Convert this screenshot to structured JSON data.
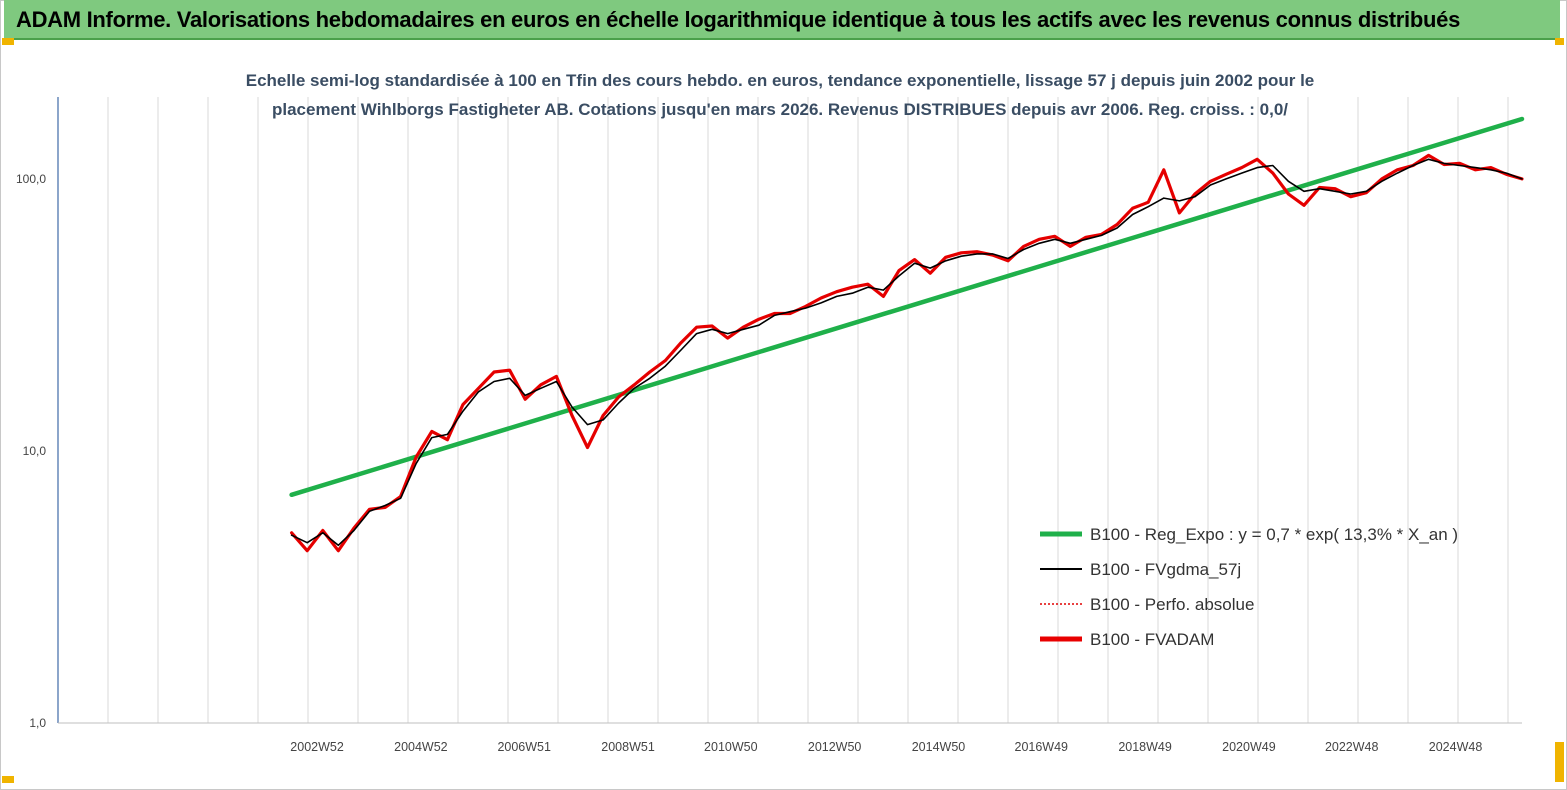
{
  "banner": {
    "title": "ADAM Informe. Valorisations hebdomadaires en euros en échelle logarithmique identique à tous les actifs avec les revenus connus distribués"
  },
  "colors": {
    "banner_bg": "#7fc97f",
    "regression": "#1fb04a",
    "fvgdma": "#000000",
    "perfo": "#e00000",
    "fvadam": "#e80000",
    "corner_marker": "#f0b400"
  },
  "chart_data": {
    "type": "line",
    "title_lines": [
      "Echelle semi-log standardisée à 100 en Tfin des cours hebdo. en euros, tendance exponentielle, lissage 57 j depuis juin 2002 pour le",
      "placement Wihlborgs Fastigheter AB. Cotations jusqu'en mars 2026. Revenus DISTRIBUES depuis avr 2006. Reg. croiss. : 0,0/"
    ],
    "y_scale": "log",
    "ylim": [
      1,
      200
    ],
    "y_ticks": [
      "1,0",
      "10,0",
      "100,0"
    ],
    "xlim": [
      1998.0,
      2026.2
    ],
    "x_ticks": [
      {
        "label": "2002W52",
        "x": 2002.99
      },
      {
        "label": "2004W52",
        "x": 2004.99
      },
      {
        "label": "2006W51",
        "x": 2006.98
      },
      {
        "label": "2008W51",
        "x": 2008.98
      },
      {
        "label": "2010W50",
        "x": 2010.96
      },
      {
        "label": "2012W50",
        "x": 2012.96
      },
      {
        "label": "2014W50",
        "x": 2014.96
      },
      {
        "label": "2016W49",
        "x": 2016.94
      },
      {
        "label": "2018W49",
        "x": 2018.94
      },
      {
        "label": "2020W49",
        "x": 2020.94
      },
      {
        "label": "2022W48",
        "x": 2022.92
      },
      {
        "label": "2024W48",
        "x": 2024.92
      }
    ],
    "grid": "vertical",
    "legend_position": "bottom-right",
    "series": [
      {
        "name": "B100 - Reg_Expo : y = 0,7 * exp( 13,3% *  X_an )",
        "style": "thick-green",
        "x": [
          2002.5,
          2026.2
        ],
        "y": [
          6.9,
          166
        ]
      },
      {
        "name": "B100 - FVgdma_57j",
        "style": "thin-black",
        "x": [
          2002.5,
          2002.8,
          2003.1,
          2003.4,
          2003.7,
          2004.0,
          2004.3,
          2004.6,
          2004.9,
          2005.2,
          2005.5,
          2005.8,
          2006.1,
          2006.4,
          2006.7,
          2007.0,
          2007.3,
          2007.6,
          2007.9,
          2008.2,
          2008.5,
          2008.8,
          2009.1,
          2009.4,
          2009.7,
          2010.0,
          2010.3,
          2010.6,
          2010.9,
          2011.2,
          2011.5,
          2011.8,
          2012.1,
          2012.4,
          2012.7,
          2013.0,
          2013.3,
          2013.6,
          2013.9,
          2014.2,
          2014.5,
          2014.8,
          2015.1,
          2015.4,
          2015.7,
          2016.0,
          2016.3,
          2016.6,
          2016.9,
          2017.2,
          2017.5,
          2017.8,
          2018.1,
          2018.4,
          2018.7,
          2019.0,
          2019.3,
          2019.6,
          2019.9,
          2020.2,
          2020.5,
          2020.8,
          2021.1,
          2021.4,
          2021.7,
          2022.0,
          2022.3,
          2022.6,
          2022.9,
          2023.2,
          2023.5,
          2023.8,
          2024.1,
          2024.4,
          2024.7,
          2025.0,
          2025.3,
          2025.6,
          2025.9,
          2026.2
        ],
        "y": [
          4.9,
          4.6,
          5.0,
          4.5,
          5.1,
          6.0,
          6.3,
          6.7,
          9.0,
          11.2,
          11.5,
          14.0,
          16.5,
          18.0,
          18.5,
          16.0,
          17.0,
          18.0,
          14.5,
          12.5,
          13.0,
          15.0,
          17.0,
          18.5,
          20.5,
          23.5,
          27.0,
          28.0,
          27.0,
          28.0,
          29.0,
          31.5,
          32.5,
          33.5,
          35.0,
          37.0,
          38.0,
          40.0,
          39.0,
          44.0,
          49.0,
          47.0,
          50.0,
          52.0,
          53.0,
          53.0,
          51.0,
          55.0,
          58.0,
          60.0,
          58.0,
          60.0,
          62.0,
          66.0,
          74.0,
          79.0,
          85.0,
          83.0,
          86.0,
          95.0,
          100.0,
          105.0,
          110.0,
          112.0,
          98.0,
          90.0,
          92.0,
          90.0,
          88.0,
          90.0,
          98.0,
          105.0,
          112.0,
          118.0,
          114.0,
          112.0,
          110.0,
          108.0,
          105.0,
          100.0
        ]
      },
      {
        "name": "B100 - Perfo. absolue",
        "style": "dotted-red",
        "x": [
          2002.5,
          2002.8,
          2003.1,
          2003.4,
          2003.7,
          2004.0,
          2004.3,
          2004.6,
          2004.9,
          2005.2,
          2005.5,
          2005.8,
          2006.1,
          2006.4,
          2006.7,
          2007.0,
          2007.3,
          2007.6,
          2007.9,
          2008.2,
          2008.5,
          2008.8,
          2009.1,
          2009.4,
          2009.7,
          2010.0,
          2010.3,
          2010.6,
          2010.9,
          2011.2,
          2011.5,
          2011.8,
          2012.1,
          2012.4,
          2012.7,
          2013.0,
          2013.3,
          2013.6,
          2013.9,
          2014.2,
          2014.5,
          2014.8,
          2015.1,
          2015.4,
          2015.7,
          2016.0,
          2016.3,
          2016.6,
          2016.9,
          2017.2,
          2017.5,
          2017.8,
          2018.1,
          2018.4,
          2018.7,
          2019.0,
          2019.3,
          2019.6,
          2019.9,
          2020.2,
          2020.5,
          2020.8,
          2021.1,
          2021.4,
          2021.7,
          2022.0,
          2022.3,
          2022.6,
          2022.9,
          2023.2,
          2023.5,
          2023.8,
          2024.1,
          2024.4,
          2024.7,
          2025.0,
          2025.3,
          2025.6,
          2025.9,
          2026.2
        ],
        "y": [
          5.0,
          4.3,
          5.1,
          4.3,
          5.2,
          6.1,
          6.2,
          6.8,
          9.5,
          11.8,
          11.0,
          14.8,
          17.0,
          19.5,
          19.8,
          15.5,
          17.5,
          18.8,
          13.5,
          10.3,
          13.5,
          15.8,
          17.5,
          19.5,
          21.5,
          25.0,
          28.5,
          28.8,
          26.0,
          28.5,
          30.5,
          32.0,
          32.0,
          34.0,
          36.5,
          38.5,
          40.0,
          41.0,
          37.0,
          46.0,
          50.5,
          45.0,
          51.5,
          53.5,
          54.0,
          52.5,
          50.0,
          56.5,
          60.0,
          61.5,
          56.5,
          61.0,
          62.5,
          68.0,
          78.0,
          82.0,
          108.0,
          75.0,
          88.0,
          98.0,
          104.0,
          110.0,
          118.0,
          105.0,
          88.0,
          80.0,
          93.0,
          92.0,
          86.0,
          89.0,
          100.0,
          108.0,
          112.0,
          122.0,
          113.0,
          114.0,
          108.0,
          110.0,
          104.0,
          100.0
        ]
      },
      {
        "name": "B100 - FVADAM",
        "style": "thick-red",
        "x": [
          2002.5,
          2002.8,
          2003.1,
          2003.4,
          2003.7,
          2004.0,
          2004.3,
          2004.6,
          2004.9,
          2005.2,
          2005.5,
          2005.8,
          2006.1,
          2006.4,
          2006.7,
          2007.0,
          2007.3,
          2007.6,
          2007.9,
          2008.2,
          2008.5,
          2008.8,
          2009.1,
          2009.4,
          2009.7,
          2010.0,
          2010.3,
          2010.6,
          2010.9,
          2011.2,
          2011.5,
          2011.8,
          2012.1,
          2012.4,
          2012.7,
          2013.0,
          2013.3,
          2013.6,
          2013.9,
          2014.2,
          2014.5,
          2014.8,
          2015.1,
          2015.4,
          2015.7,
          2016.0,
          2016.3,
          2016.6,
          2016.9,
          2017.2,
          2017.5,
          2017.8,
          2018.1,
          2018.4,
          2018.7,
          2019.0,
          2019.3,
          2019.6,
          2019.9,
          2020.2,
          2020.5,
          2020.8,
          2021.1,
          2021.4,
          2021.7,
          2022.0,
          2022.3,
          2022.6,
          2022.9,
          2023.2,
          2023.5,
          2023.8,
          2024.1,
          2024.4,
          2024.7,
          2025.0,
          2025.3,
          2025.6,
          2025.9,
          2026.2
        ],
        "y": [
          5.0,
          4.3,
          5.1,
          4.3,
          5.2,
          6.1,
          6.2,
          6.8,
          9.5,
          11.8,
          11.0,
          14.8,
          17.0,
          19.5,
          19.8,
          15.5,
          17.5,
          18.8,
          13.5,
          10.3,
          13.5,
          15.8,
          17.5,
          19.5,
          21.5,
          25.0,
          28.5,
          28.8,
          26.0,
          28.5,
          30.5,
          32.0,
          32.0,
          34.0,
          36.5,
          38.5,
          40.0,
          41.0,
          37.0,
          46.0,
          50.5,
          45.0,
          51.5,
          53.5,
          54.0,
          52.5,
          50.0,
          56.5,
          60.0,
          61.5,
          56.5,
          61.0,
          62.5,
          68.0,
          78.0,
          82.0,
          108.0,
          75.0,
          88.0,
          98.0,
          104.0,
          110.0,
          118.0,
          105.0,
          88.0,
          80.0,
          93.0,
          92.0,
          86.0,
          89.0,
          100.0,
          108.0,
          112.0,
          122.0,
          113.0,
          114.0,
          108.0,
          110.0,
          104.0,
          100.0
        ]
      }
    ]
  }
}
